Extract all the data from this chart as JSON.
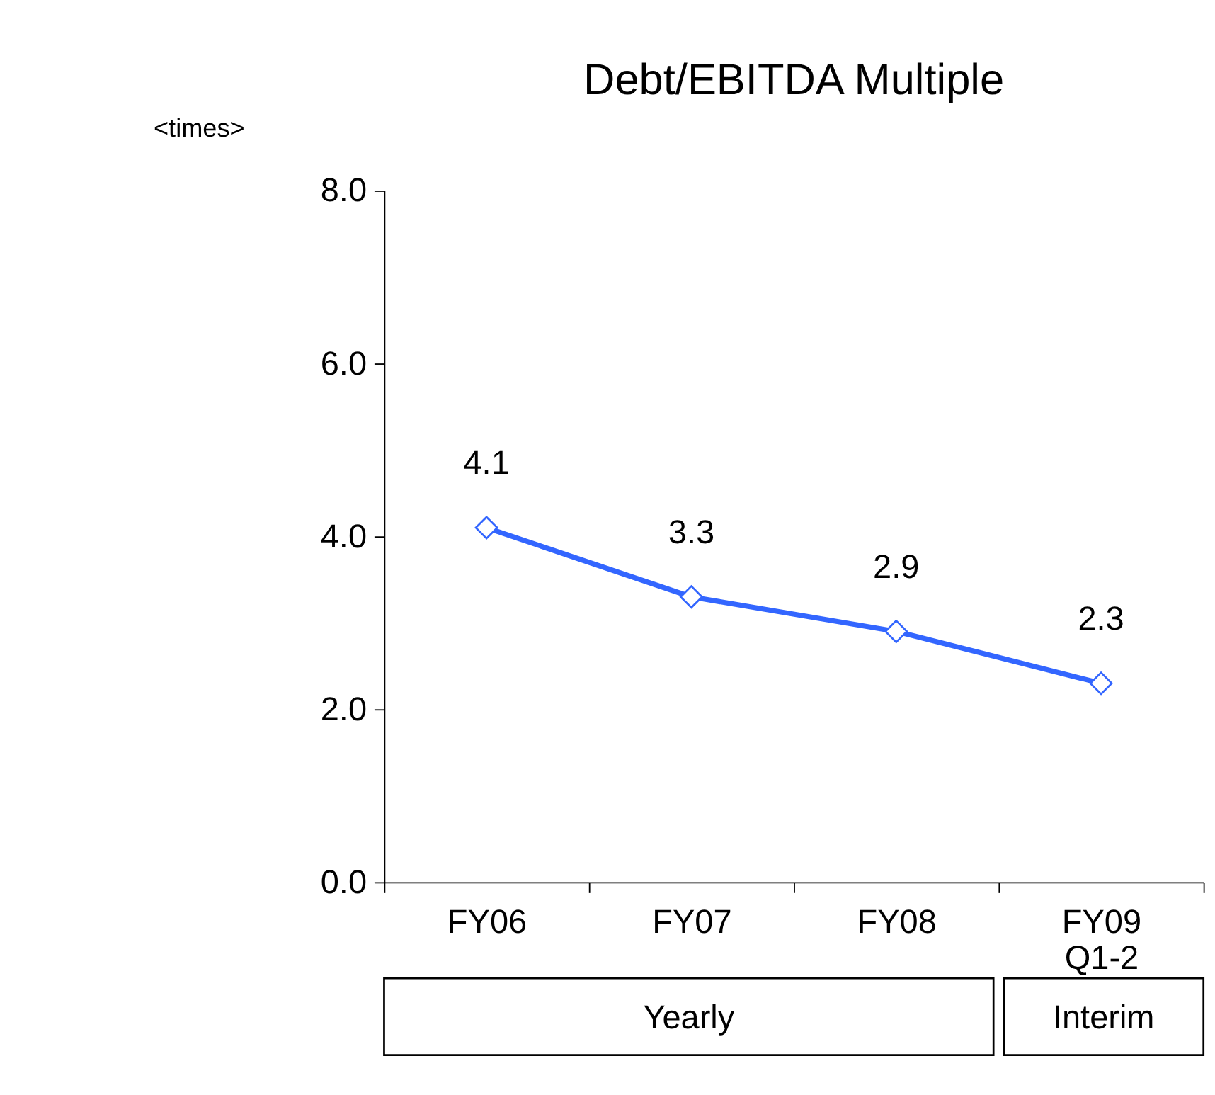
{
  "chart_data": {
    "type": "line",
    "title": "Debt/EBITDA Multiple",
    "ylabel": "<times>",
    "categories": [
      "FY06",
      "FY07",
      "FY08",
      "FY09\nQ1-2"
    ],
    "series": [
      {
        "color": "#3366ff",
        "values": [
          4.1,
          3.3,
          2.9,
          2.3
        ]
      }
    ],
    "data_labels": true,
    "marker": "diamond",
    "line_style": "solid",
    "grid": false,
    "ylim": [
      0,
      8
    ],
    "yticks": [
      {
        "value": 0,
        "label": "0.0"
      },
      {
        "value": 2,
        "label": "2.0"
      },
      {
        "value": 4,
        "label": "4.0"
      },
      {
        "value": 6,
        "label": "6.0"
      },
      {
        "value": 8,
        "label": "8.0"
      }
    ],
    "annotations": [
      "Yearly",
      "Interim"
    ]
  }
}
